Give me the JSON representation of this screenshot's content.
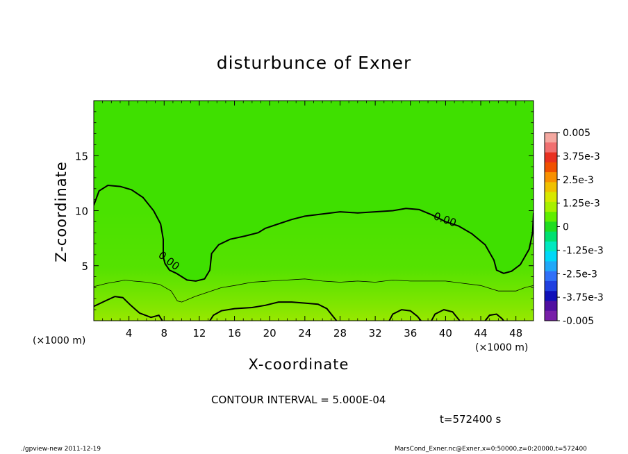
{
  "chart_data": {
    "type": "contour",
    "title": "disturbunce of Exner",
    "xlabel": "X-coordinate",
    "ylabel": "Z-coordinate",
    "x_unit_left": "(×1000 m)",
    "x_unit_right": "(×1000 m)",
    "xlim": [
      0,
      50
    ],
    "ylim": [
      0,
      20
    ],
    "x_ticks": [
      4,
      8,
      12,
      16,
      20,
      24,
      28,
      32,
      36,
      40,
      44,
      48
    ],
    "y_ticks": [
      5,
      10,
      15
    ],
    "contour_interval": "CONTOUR INTERVAL = 5.000E-04",
    "time_label": "t=572400 s",
    "colorbar": {
      "ticks": [
        "0.005",
        "3.75e-3",
        "2.5e-3",
        "1.25e-3",
        "0",
        "-1.25e-3",
        "-2.5e-3",
        "-3.75e-3",
        "-0.005"
      ],
      "range": [
        -0.005,
        0.005
      ],
      "colors": [
        "#f4a8a0",
        "#f07070",
        "#e83020",
        "#f05000",
        "#f89000",
        "#f0c000",
        "#d8e800",
        "#a8f000",
        "#60ee00",
        "#20dd20",
        "#00e070",
        "#00e8c0",
        "#00d8f8",
        "#20a8f8",
        "#3070f8",
        "#2040e0",
        "#1010b8",
        "#5010a0",
        "#7820a8"
      ]
    },
    "contour_labels": [
      {
        "text": "0.00",
        "x": 8.3,
        "y": 5.2
      },
      {
        "text": "0.00",
        "x": 39.8,
        "y": 8.9
      }
    ],
    "zero_contour": [
      [
        0,
        10.5
      ],
      [
        0.6,
        11.8
      ],
      [
        1.6,
        12.3
      ],
      [
        3,
        12.2
      ],
      [
        4.3,
        11.9
      ],
      [
        5.6,
        11.2
      ],
      [
        6.8,
        10.0
      ],
      [
        7.6,
        8.8
      ],
      [
        7.9,
        7.4
      ],
      [
        7.9,
        5.8
      ],
      [
        8.1,
        5.2
      ],
      [
        8.6,
        4.6
      ],
      [
        9.4,
        4.3
      ],
      [
        10.6,
        3.7
      ],
      [
        11.6,
        3.6
      ],
      [
        12.6,
        3.8
      ],
      [
        13.2,
        4.6
      ],
      [
        13.4,
        6.1
      ],
      [
        14.2,
        6.9
      ],
      [
        15.5,
        7.4
      ],
      [
        17.2,
        7.7
      ],
      [
        18.7,
        8.0
      ],
      [
        19.5,
        8.4
      ],
      [
        21,
        8.8
      ],
      [
        22.5,
        9.2
      ],
      [
        24,
        9.5
      ],
      [
        26,
        9.7
      ],
      [
        28,
        9.9
      ],
      [
        30,
        9.8
      ],
      [
        32,
        9.9
      ],
      [
        34,
        10.0
      ],
      [
        35.5,
        10.2
      ],
      [
        37,
        10.1
      ],
      [
        38.5,
        9.6
      ],
      [
        40,
        9.0
      ],
      [
        41.5,
        8.6
      ],
      [
        43,
        7.9
      ],
      [
        44.5,
        6.9
      ],
      [
        45.5,
        5.5
      ],
      [
        45.8,
        4.6
      ],
      [
        46.6,
        4.3
      ],
      [
        47.5,
        4.5
      ],
      [
        48.5,
        5.1
      ],
      [
        49.5,
        6.5
      ],
      [
        49.9,
        8.0
      ],
      [
        50,
        9.8
      ]
    ],
    "thin_contour": [
      [
        0,
        3.1
      ],
      [
        1.5,
        3.4
      ],
      [
        3,
        3.6
      ],
      [
        3.5,
        3.7
      ],
      [
        4.5,
        3.6
      ],
      [
        6,
        3.5
      ],
      [
        7.5,
        3.3
      ],
      [
        8.8,
        2.7
      ],
      [
        9.5,
        1.8
      ],
      [
        10,
        1.7
      ],
      [
        11.5,
        2.2
      ],
      [
        13,
        2.6
      ],
      [
        14.5,
        3.0
      ],
      [
        16,
        3.2
      ],
      [
        18,
        3.5
      ],
      [
        20,
        3.6
      ],
      [
        22,
        3.7
      ],
      [
        24,
        3.8
      ],
      [
        26,
        3.6
      ],
      [
        28,
        3.5
      ],
      [
        30,
        3.6
      ],
      [
        32,
        3.5
      ],
      [
        34,
        3.7
      ],
      [
        36,
        3.6
      ],
      [
        38,
        3.6
      ],
      [
        40,
        3.6
      ],
      [
        42,
        3.4
      ],
      [
        44,
        3.2
      ],
      [
        46,
        2.7
      ],
      [
        48,
        2.7
      ],
      [
        49,
        3.0
      ],
      [
        50,
        3.2
      ]
    ],
    "lower_contours": [
      [
        [
          0,
          1.3
        ],
        [
          1.3,
          1.8
        ],
        [
          2.4,
          2.2
        ],
        [
          3.3,
          2.1
        ],
        [
          4.2,
          1.4
        ],
        [
          5.2,
          0.7
        ],
        [
          6.5,
          0.3
        ],
        [
          7.4,
          0.5
        ],
        [
          7.8,
          0.0
        ]
      ],
      [
        [
          13.2,
          0.0
        ],
        [
          13.6,
          0.5
        ],
        [
          14.5,
          0.9
        ],
        [
          16,
          1.1
        ],
        [
          18,
          1.2
        ],
        [
          19.5,
          1.4
        ],
        [
          21,
          1.7
        ],
        [
          22.5,
          1.7
        ],
        [
          24,
          1.6
        ],
        [
          25.5,
          1.5
        ],
        [
          26.5,
          1.1
        ],
        [
          27.3,
          0.3
        ],
        [
          27.6,
          0.0
        ]
      ],
      [
        [
          33.6,
          0.0
        ],
        [
          34,
          0.6
        ],
        [
          35,
          1.0
        ],
        [
          36,
          0.9
        ],
        [
          36.8,
          0.4
        ],
        [
          37.2,
          0.0
        ]
      ],
      [
        [
          38.4,
          0.0
        ],
        [
          38.8,
          0.6
        ],
        [
          39.8,
          1.0
        ],
        [
          40.8,
          0.8
        ],
        [
          41.4,
          0.2
        ],
        [
          41.6,
          0.0
        ]
      ],
      [
        [
          44.5,
          0.0
        ],
        [
          45,
          0.5
        ],
        [
          45.8,
          0.6
        ],
        [
          46.4,
          0.2
        ],
        [
          46.6,
          0.0
        ]
      ]
    ]
  },
  "footer": {
    "left": "./gpview-new   2011-12-19",
    "right": "MarsCond_Exner.nc@Exner,x=0:50000,z=0:20000,t=572400"
  }
}
